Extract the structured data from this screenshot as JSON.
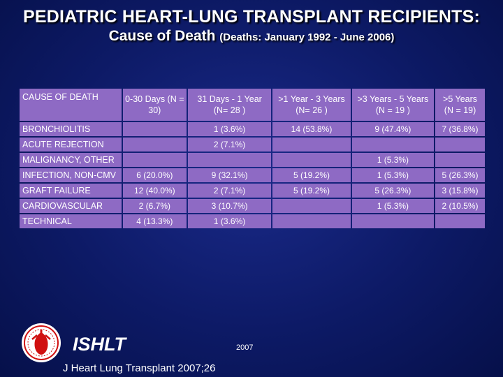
{
  "title": {
    "line1": "PEDIATRIC HEART-LUNG TRANSPLANT RECIPIENTS:",
    "line2_main": "Cause of Death ",
    "line2_sub": "(Deaths: January 1992 - June 2006)"
  },
  "table": {
    "headers": [
      "CAUSE OF DEATH",
      "0-30 Days (N = 30)",
      "31 Days - 1 Year (N= 28 )",
      ">1 Year - 3 Years (N= 26 )",
      ">3 Years - 5 Years (N = 19 )",
      ">5 Years (N = 19)"
    ],
    "rows": [
      {
        "cause": "BRONCHIOLITIS",
        "values": [
          "",
          "1 (3.6%)",
          "14 (53.8%)",
          "9 (47.4%)",
          "7 (36.8%)"
        ]
      },
      {
        "cause": "ACUTE REJECTION",
        "values": [
          "",
          "2 (7.1%)",
          "",
          "",
          ""
        ]
      },
      {
        "cause": "MALIGNANCY, OTHER",
        "values": [
          "",
          "",
          "",
          "1 (5.3%)",
          ""
        ]
      },
      {
        "cause": "INFECTION, NON-CMV",
        "values": [
          "6 (20.0%)",
          "9 (32.1%)",
          "5 (19.2%)",
          "1 (5.3%)",
          "5 (26.3%)"
        ]
      },
      {
        "cause": "GRAFT FAILURE",
        "values": [
          "12 (40.0%)",
          "2 (7.1%)",
          "5 (19.2%)",
          "5 (26.3%)",
          "3 (15.8%)"
        ]
      },
      {
        "cause": "CARDIOVASCULAR",
        "values": [
          "2 (6.7%)",
          "3 (10.7%)",
          "",
          "1 (5.3%)",
          "2 (10.5%)"
        ]
      },
      {
        "cause": "TECHNICAL",
        "values": [
          "4 (13.3%)",
          "1 (3.6%)",
          "",
          "",
          ""
        ]
      }
    ]
  },
  "footer": {
    "brand": "ISHLT",
    "year": "2007",
    "citation": "J Heart Lung Transplant 2007;26"
  },
  "colors": {
    "background": "#0d1a66",
    "cell": "#8e6ac4",
    "logo_red": "#d01010"
  }
}
